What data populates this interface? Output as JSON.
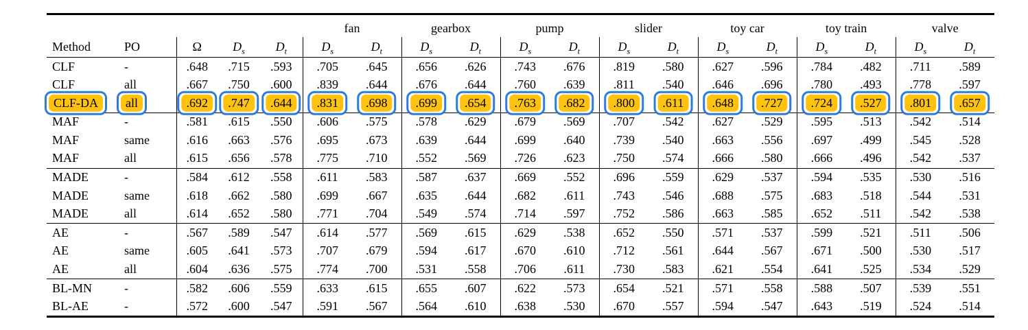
{
  "table": {
    "machine_groups": [
      "fan",
      "gearbox",
      "pump",
      "slider",
      "toy car",
      "toy train",
      "valve"
    ],
    "columns": {
      "method_label": "Method",
      "po_label": "PO",
      "overall": [
        {
          "text": "Ω",
          "cal": false
        },
        {
          "text": "D",
          "sub": "s",
          "cal": true
        },
        {
          "text": "D",
          "sub": "t",
          "cal": true
        }
      ],
      "pair": [
        {
          "text": "D",
          "sub": "s",
          "cal": true
        },
        {
          "text": "D",
          "sub": "t",
          "cal": true
        }
      ]
    },
    "highlight_colors": {
      "fill": "#ffc20e",
      "border": "#2f7cd4"
    },
    "rows": [
      {
        "method": "CLF",
        "po": "-",
        "highlight": false,
        "sep_above": false,
        "values": [
          ".648",
          ".715",
          ".593",
          ".705",
          ".645",
          ".656",
          ".626",
          ".743",
          ".676",
          ".819",
          ".580",
          ".627",
          ".596",
          ".784",
          ".482",
          ".711",
          ".589"
        ]
      },
      {
        "method": "CLF",
        "po": "all",
        "highlight": false,
        "sep_above": false,
        "values": [
          ".667",
          ".750",
          ".600",
          ".839",
          ".644",
          ".676",
          ".644",
          ".760",
          ".639",
          ".811",
          ".540",
          ".646",
          ".696",
          ".780",
          ".493",
          ".778",
          ".597"
        ]
      },
      {
        "method": "CLF-DA",
        "po": "all",
        "highlight": true,
        "sep_above": false,
        "values": [
          ".692",
          ".747",
          ".644",
          ".831",
          ".698",
          ".699",
          ".654",
          ".763",
          ".682",
          ".800",
          ".611",
          ".648",
          ".727",
          ".724",
          ".527",
          ".801",
          ".657"
        ]
      },
      {
        "method": "MAF",
        "po": "-",
        "highlight": false,
        "sep_above": true,
        "values": [
          ".581",
          ".615",
          ".550",
          ".606",
          ".575",
          ".578",
          ".629",
          ".679",
          ".569",
          ".707",
          ".542",
          ".627",
          ".529",
          ".595",
          ".513",
          ".542",
          ".514"
        ]
      },
      {
        "method": "MAF",
        "po": "same",
        "highlight": false,
        "sep_above": false,
        "values": [
          ".616",
          ".663",
          ".576",
          ".695",
          ".673",
          ".639",
          ".644",
          ".699",
          ".640",
          ".739",
          ".540",
          ".663",
          ".556",
          ".697",
          ".499",
          ".545",
          ".528"
        ]
      },
      {
        "method": "MAF",
        "po": "all",
        "highlight": false,
        "sep_above": false,
        "values": [
          ".615",
          ".656",
          ".578",
          ".775",
          ".710",
          ".552",
          ".569",
          ".726",
          ".623",
          ".750",
          ".574",
          ".666",
          ".580",
          ".666",
          ".496",
          ".542",
          ".537"
        ]
      },
      {
        "method": "MADE",
        "po": "-",
        "highlight": false,
        "sep_above": true,
        "values": [
          ".584",
          ".612",
          ".558",
          ".611",
          ".583",
          ".587",
          ".637",
          ".669",
          ".552",
          ".696",
          ".559",
          ".629",
          ".537",
          ".594",
          ".535",
          ".530",
          ".516"
        ]
      },
      {
        "method": "MADE",
        "po": "same",
        "highlight": false,
        "sep_above": false,
        "values": [
          ".618",
          ".662",
          ".580",
          ".699",
          ".667",
          ".635",
          ".644",
          ".682",
          ".611",
          ".743",
          ".546",
          ".688",
          ".575",
          ".683",
          ".518",
          ".544",
          ".531"
        ]
      },
      {
        "method": "MADE",
        "po": "all",
        "highlight": false,
        "sep_above": false,
        "values": [
          ".614",
          ".652",
          ".580",
          ".771",
          ".704",
          ".549",
          ".574",
          ".714",
          ".597",
          ".752",
          ".586",
          ".663",
          ".585",
          ".652",
          ".511",
          ".542",
          ".538"
        ]
      },
      {
        "method": "AE",
        "po": "-",
        "highlight": false,
        "sep_above": true,
        "values": [
          ".567",
          ".589",
          ".547",
          ".614",
          ".577",
          ".569",
          ".615",
          ".629",
          ".538",
          ".652",
          ".550",
          ".571",
          ".537",
          ".599",
          ".521",
          ".511",
          ".506"
        ]
      },
      {
        "method": "AE",
        "po": "same",
        "highlight": false,
        "sep_above": false,
        "values": [
          ".605",
          ".641",
          ".573",
          ".707",
          ".679",
          ".594",
          ".617",
          ".670",
          ".610",
          ".712",
          ".561",
          ".644",
          ".567",
          ".671",
          ".500",
          ".530",
          ".517"
        ]
      },
      {
        "method": "AE",
        "po": "all",
        "highlight": false,
        "sep_above": false,
        "values": [
          ".604",
          ".636",
          ".575",
          ".774",
          ".700",
          ".531",
          ".558",
          ".706",
          ".611",
          ".730",
          ".583",
          ".621",
          ".554",
          ".641",
          ".525",
          ".534",
          ".529"
        ]
      },
      {
        "method": "BL-MN",
        "po": "-",
        "highlight": false,
        "sep_above": true,
        "values": [
          ".582",
          ".606",
          ".559",
          ".633",
          ".615",
          ".655",
          ".607",
          ".622",
          ".573",
          ".654",
          ".521",
          ".571",
          ".558",
          ".588",
          ".507",
          ".539",
          ".551"
        ]
      },
      {
        "method": "BL-AE",
        "po": "-",
        "highlight": false,
        "sep_above": false,
        "values": [
          ".572",
          ".600",
          ".547",
          ".591",
          ".567",
          ".564",
          ".610",
          ".638",
          ".530",
          ".670",
          ".557",
          ".594",
          ".547",
          ".643",
          ".519",
          ".524",
          ".514"
        ]
      }
    ]
  }
}
